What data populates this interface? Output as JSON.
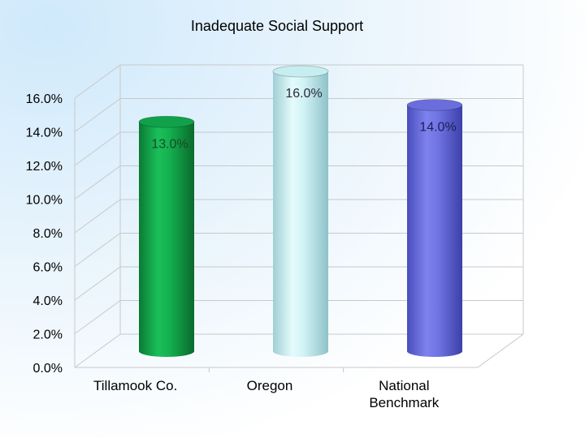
{
  "chart_data": {
    "type": "bar",
    "style": "3d-cylinder",
    "title": "Inadequate Social Support",
    "categories": [
      "Tillamook Co.",
      "Oregon",
      "National\nBenchmark"
    ],
    "values": [
      13.0,
      16.0,
      14.0
    ],
    "data_labels": [
      "13.0%",
      "16.0%",
      "14.0%"
    ],
    "colors": [
      "#10a24a",
      "#c6eef0",
      "#6a6edc"
    ],
    "label_colors": [
      "#1a4a26",
      "#2a2a3a",
      "#1e1e5a"
    ],
    "y_ticks": [
      "0.0%",
      "2.0%",
      "4.0%",
      "6.0%",
      "8.0%",
      "10.0%",
      "12.0%",
      "14.0%",
      "16.0%"
    ],
    "ylim": [
      0,
      16
    ],
    "grid": true,
    "legend": "none"
  }
}
